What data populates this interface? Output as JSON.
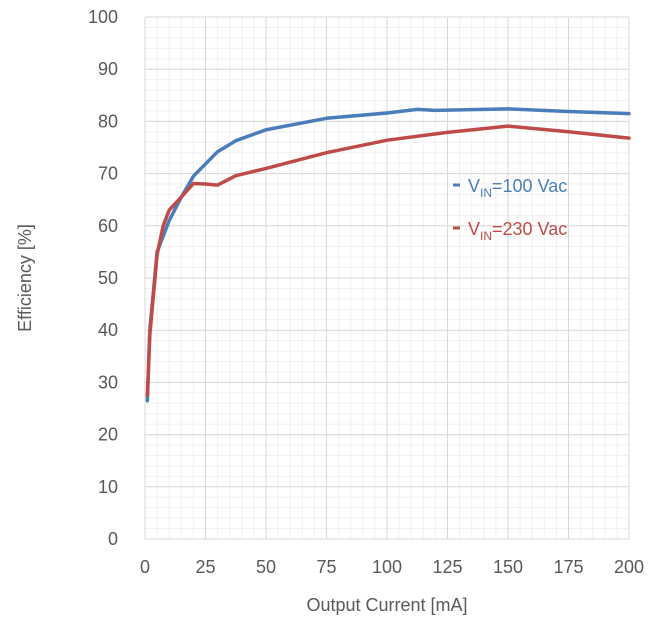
{
  "chart_data": {
    "type": "line",
    "title": "",
    "xlabel": "Output Current [mA]",
    "ylabel": "Efficiency [%]",
    "xlim": [
      0,
      200
    ],
    "ylim": [
      0,
      100
    ],
    "xticks": [
      0,
      25,
      50,
      75,
      100,
      125,
      150,
      175,
      200
    ],
    "yticks": [
      0,
      10,
      20,
      30,
      40,
      50,
      60,
      70,
      80,
      90,
      100
    ],
    "x_minor_step": 5,
    "y_minor_step": 2,
    "grid": true,
    "legend_position": "right",
    "series": [
      {
        "name_prefix": "V",
        "name_sub": "IN",
        "name_suffix": "=100 Vac",
        "color": "#4a7ebb",
        "x": [
          1,
          2,
          5,
          10,
          15,
          20,
          30,
          37.5,
          50,
          75,
          100,
          112.5,
          120,
          150,
          175,
          200
        ],
        "y": [
          26.5,
          40,
          55,
          61,
          65.5,
          69.5,
          74.2,
          76.3,
          78.4,
          80.6,
          81.6,
          82.3,
          82.1,
          82.4,
          81.9,
          81.5
        ]
      },
      {
        "name_prefix": "V",
        "name_sub": "IN",
        "name_suffix": "=230 Vac",
        "color": "#be4b48",
        "x": [
          1,
          2,
          5,
          7.5,
          10,
          15,
          20,
          25,
          30,
          37.5,
          50,
          75,
          100,
          125,
          150,
          175,
          200
        ],
        "y": [
          27.5,
          39,
          54.5,
          60,
          63,
          65.5,
          68.1,
          68,
          67.8,
          69.6,
          71,
          74,
          76.4,
          77.9,
          79.1,
          78,
          76.8
        ]
      }
    ]
  }
}
